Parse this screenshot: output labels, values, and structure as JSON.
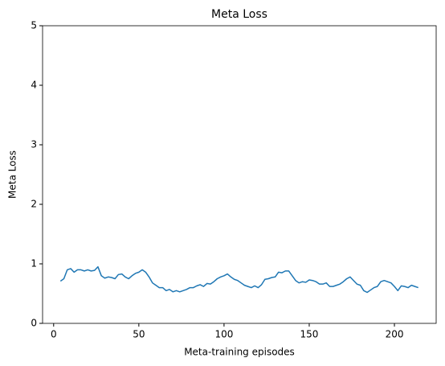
{
  "chart_data": {
    "type": "line",
    "title": "Meta Loss",
    "xlabel": "Meta-training episodes",
    "ylabel": "Meta Loss",
    "x": [
      4,
      6,
      8,
      10,
      12,
      14,
      16,
      18,
      20,
      22,
      24,
      26,
      28,
      30,
      32,
      34,
      36,
      38,
      40,
      42,
      44,
      46,
      48,
      50,
      52,
      54,
      56,
      58,
      60,
      62,
      64,
      66,
      68,
      70,
      72,
      74,
      76,
      78,
      80,
      82,
      84,
      86,
      88,
      90,
      92,
      94,
      96,
      98,
      100,
      102,
      104,
      106,
      108,
      110,
      112,
      114,
      116,
      118,
      120,
      122,
      124,
      126,
      128,
      130,
      132,
      134,
      136,
      138,
      140,
      142,
      144,
      146,
      148,
      150,
      152,
      154,
      156,
      158,
      160,
      162,
      164,
      166,
      168,
      170,
      172,
      174,
      176,
      178,
      180,
      182,
      184,
      186,
      188,
      190,
      192,
      194,
      196,
      198,
      200,
      202,
      204,
      206,
      208,
      210,
      212,
      214
    ],
    "series": [
      {
        "name": "Meta Loss",
        "color": "#1f77b4",
        "values": [
          0.71,
          0.75,
          0.9,
          0.92,
          0.86,
          0.9,
          0.9,
          0.88,
          0.9,
          0.88,
          0.89,
          0.95,
          0.8,
          0.76,
          0.78,
          0.77,
          0.75,
          0.82,
          0.83,
          0.78,
          0.75,
          0.8,
          0.84,
          0.86,
          0.9,
          0.86,
          0.78,
          0.68,
          0.64,
          0.6,
          0.6,
          0.55,
          0.57,
          0.53,
          0.55,
          0.53,
          0.55,
          0.57,
          0.6,
          0.6,
          0.63,
          0.65,
          0.62,
          0.67,
          0.66,
          0.7,
          0.75,
          0.78,
          0.8,
          0.83,
          0.78,
          0.74,
          0.72,
          0.68,
          0.64,
          0.62,
          0.6,
          0.63,
          0.6,
          0.65,
          0.74,
          0.75,
          0.77,
          0.78,
          0.86,
          0.85,
          0.88,
          0.88,
          0.8,
          0.72,
          0.68,
          0.7,
          0.69,
          0.73,
          0.72,
          0.7,
          0.66,
          0.66,
          0.68,
          0.62,
          0.62,
          0.64,
          0.66,
          0.7,
          0.75,
          0.78,
          0.72,
          0.66,
          0.64,
          0.55,
          0.52,
          0.56,
          0.6,
          0.62,
          0.7,
          0.72,
          0.7,
          0.68,
          0.62,
          0.55,
          0.63,
          0.62,
          0.6,
          0.64,
          0.62,
          0.6
        ]
      }
    ],
    "xlim": [
      -6.5,
      224.5
    ],
    "xticks": [
      0,
      50,
      100,
      150,
      200
    ],
    "ylim": [
      0,
      5
    ],
    "yticks": [
      0,
      1,
      2,
      3,
      4,
      5
    ]
  }
}
